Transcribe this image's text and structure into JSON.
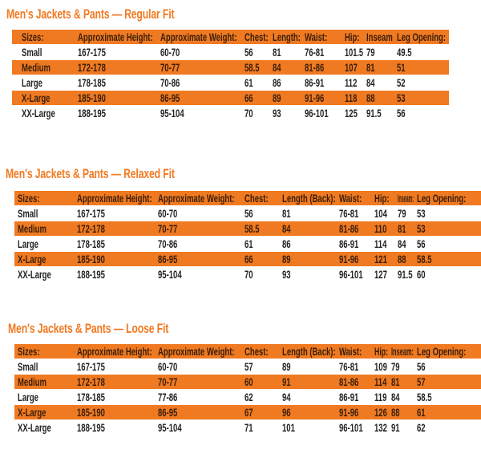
{
  "colors": {
    "accent": "#f07a22",
    "header_text": "#3a1e08",
    "body_text": "#222222"
  },
  "tables": [
    {
      "title": "Men's Jackets & Pants  —  Regular Fit",
      "headers": [
        "Sizes:",
        "Approximate Height:",
        "Approximate Weight:",
        "Chest:",
        "Length:",
        "Waist:",
        "Hip:",
        "Inseam",
        "Leg Opening:"
      ],
      "rows": [
        [
          "Small",
          "167-175",
          "60-70",
          "56",
          "81",
          "76-81",
          "101.5",
          "79",
          "49.5"
        ],
        [
          "Medium",
          "172-178",
          "70-77",
          "58.5",
          "84",
          "81-86",
          "107",
          "81",
          "51"
        ],
        [
          "Large",
          "178-185",
          "70-86",
          "61",
          "86",
          "86-91",
          "112",
          "84",
          "52"
        ],
        [
          "X-Large",
          "185-190",
          "86-95",
          "66",
          "89",
          "91-96",
          "118",
          "88",
          "53"
        ],
        [
          "XX-Large",
          "188-195",
          "95-104",
          "70",
          "93",
          "96-101",
          "125",
          "91.5",
          "56"
        ]
      ]
    },
    {
      "title": "Men's Jackets & Pants  —  Relaxed Fit",
      "headers": [
        "Sizes:",
        "Approximate Height:",
        "Approximate Weight:",
        "Chest:",
        "Length (Back):",
        "Waist:",
        "Hip:",
        "Inseam:",
        "Leg Opening:"
      ],
      "rows": [
        [
          "Small",
          "167-175",
          "60-70",
          "56",
          "81",
          "76-81",
          "104",
          "79",
          "53"
        ],
        [
          "Medium",
          "172-178",
          "70-77",
          "58.5",
          "84",
          "81-86",
          "110",
          "81",
          "53"
        ],
        [
          "Large",
          "178-185",
          "70-86",
          "61",
          "86",
          "86-91",
          "114",
          "84",
          "56"
        ],
        [
          "X-Large",
          "185-190",
          "86-95",
          "66",
          "89",
          "91-96",
          "121",
          "88",
          "58.5"
        ],
        [
          "XX-Large",
          "188-195",
          "95-104",
          "70",
          "93",
          "96-101",
          "127",
          "91.5",
          "60"
        ]
      ]
    },
    {
      "title": "Men's Jackets & Pants  —  Loose Fit",
      "headers": [
        "Sizes:",
        "Approximate Height:",
        "Approximate Weight:",
        "Chest:",
        "Length (Back):",
        "Waist:",
        "Hip:",
        "Inseam:",
        "Leg Opening:"
      ],
      "rows": [
        [
          "Small",
          "167-175",
          "60-70",
          "57",
          "89",
          "76-81",
          "109",
          "79",
          "56"
        ],
        [
          "Medium",
          "172-178",
          "70-77",
          "60",
          "91",
          "81-86",
          "114",
          "81",
          "57"
        ],
        [
          "Large",
          "178-185",
          "77-86",
          "62",
          "94",
          "86-91",
          "119",
          "84",
          "58.5"
        ],
        [
          "X-Large",
          "185-190",
          "86-95",
          "67",
          "96",
          "91-96",
          "126",
          "88",
          "61"
        ],
        [
          "XX-Large",
          "188-195",
          "95-104",
          "71",
          "101",
          "96-101",
          "132",
          "91",
          "62"
        ]
      ]
    }
  ]
}
